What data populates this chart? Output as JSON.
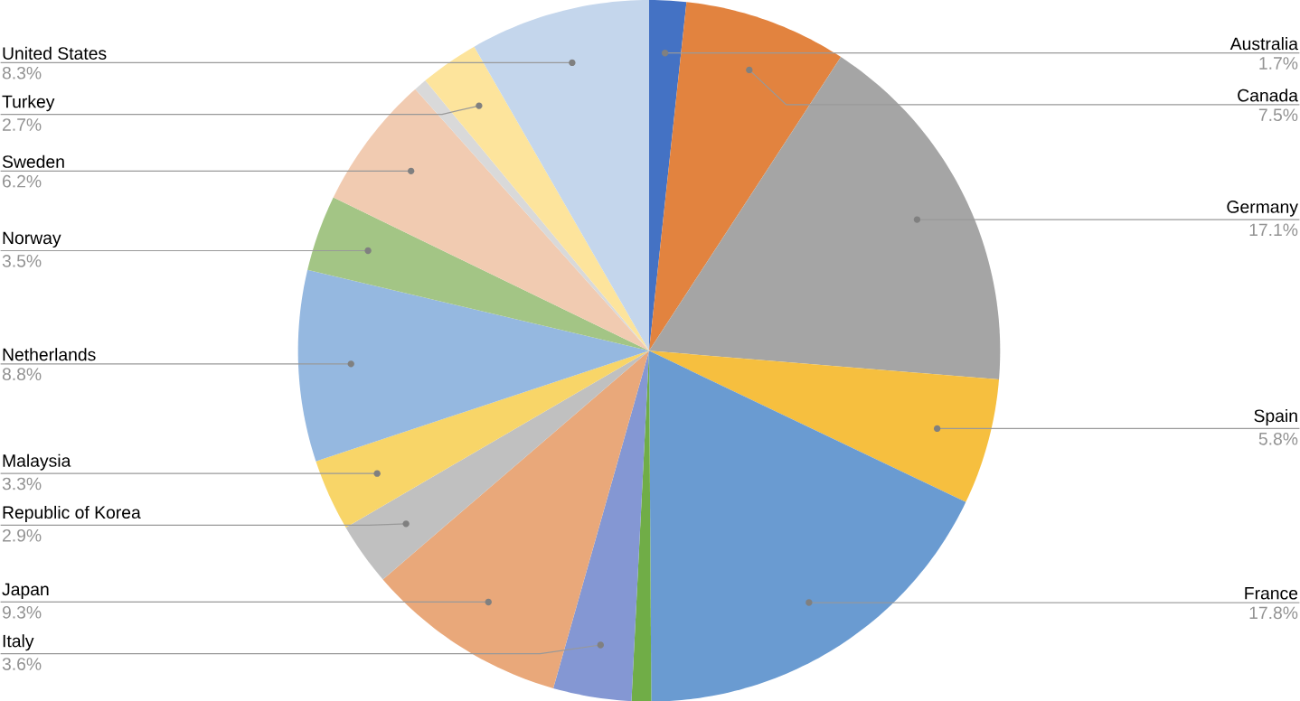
{
  "chart_data": {
    "type": "pie",
    "categories": [
      "Australia",
      "Canada",
      "Germany",
      "Spain",
      "France",
      null,
      "Italy",
      "Japan",
      "Republic of Korea",
      "Malaysia",
      "Netherlands",
      "Norway",
      "Sweden",
      null,
      "Turkey",
      "United States"
    ],
    "values": [
      1.7,
      7.5,
      17.1,
      5.8,
      17.8,
      0.9,
      3.6,
      9.3,
      2.9,
      3.3,
      8.8,
      3.5,
      6.2,
      0.6,
      2.7,
      8.3
    ],
    "value_labels": [
      "1.7%",
      "7.5%",
      "17.1%",
      "5.8%",
      "17.8%",
      null,
      "3.6%",
      "9.3%",
      "2.9%",
      "3.3%",
      "8.8%",
      "3.5%",
      "6.2%",
      null,
      "2.7%",
      "8.3%"
    ],
    "colors": [
      "#4472c4",
      "#e2833f",
      "#a5a5a5",
      "#f6bf3f",
      "#6a9bd1",
      "#70ad47",
      "#8497d3",
      "#e9a87a",
      "#c0c0c0",
      "#f8d568",
      "#95b8e0",
      "#a3c585",
      "#f1cbb1",
      "#d9d9d9",
      "#fde49c",
      "#c4d6ec"
    ]
  }
}
